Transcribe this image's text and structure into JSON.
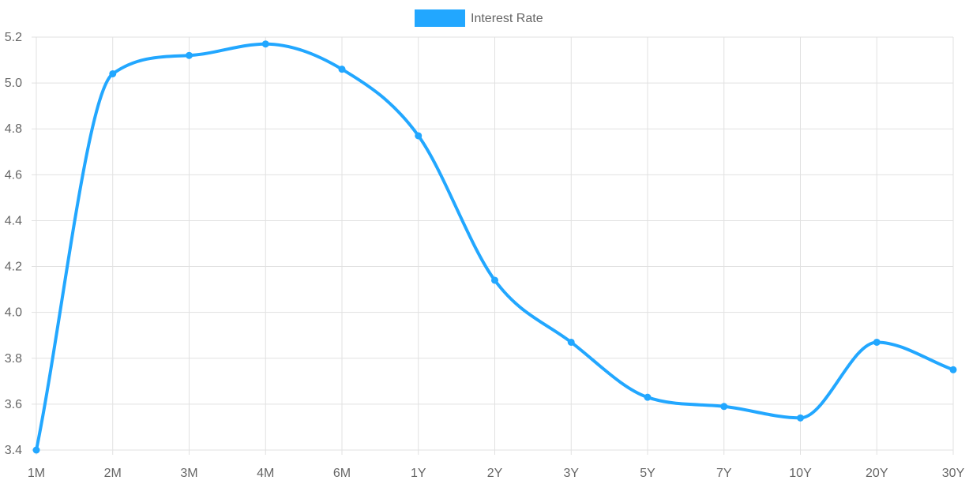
{
  "chart_data": {
    "type": "line",
    "title": "",
    "xlabel": "",
    "ylabel": "",
    "categories": [
      "1M",
      "2M",
      "3M",
      "4M",
      "6M",
      "1Y",
      "2Y",
      "3Y",
      "5Y",
      "7Y",
      "10Y",
      "20Y",
      "30Y"
    ],
    "series": [
      {
        "name": "Interest Rate",
        "values": [
          3.4,
          5.04,
          5.12,
          5.17,
          5.06,
          4.77,
          4.14,
          3.87,
          3.63,
          3.59,
          3.54,
          3.87,
          3.75
        ],
        "color": "#22a7ff"
      }
    ],
    "ylim": [
      3.4,
      5.2
    ],
    "yticks": [
      "3.4",
      "3.6",
      "3.8",
      "4.0",
      "4.2",
      "4.4",
      "4.6",
      "4.8",
      "5.0",
      "5.2"
    ],
    "grid": true,
    "legend_position": "top",
    "colors": {
      "grid": "#e1e1e1",
      "tick_text": "#666666",
      "legend_text": "#666666"
    }
  }
}
